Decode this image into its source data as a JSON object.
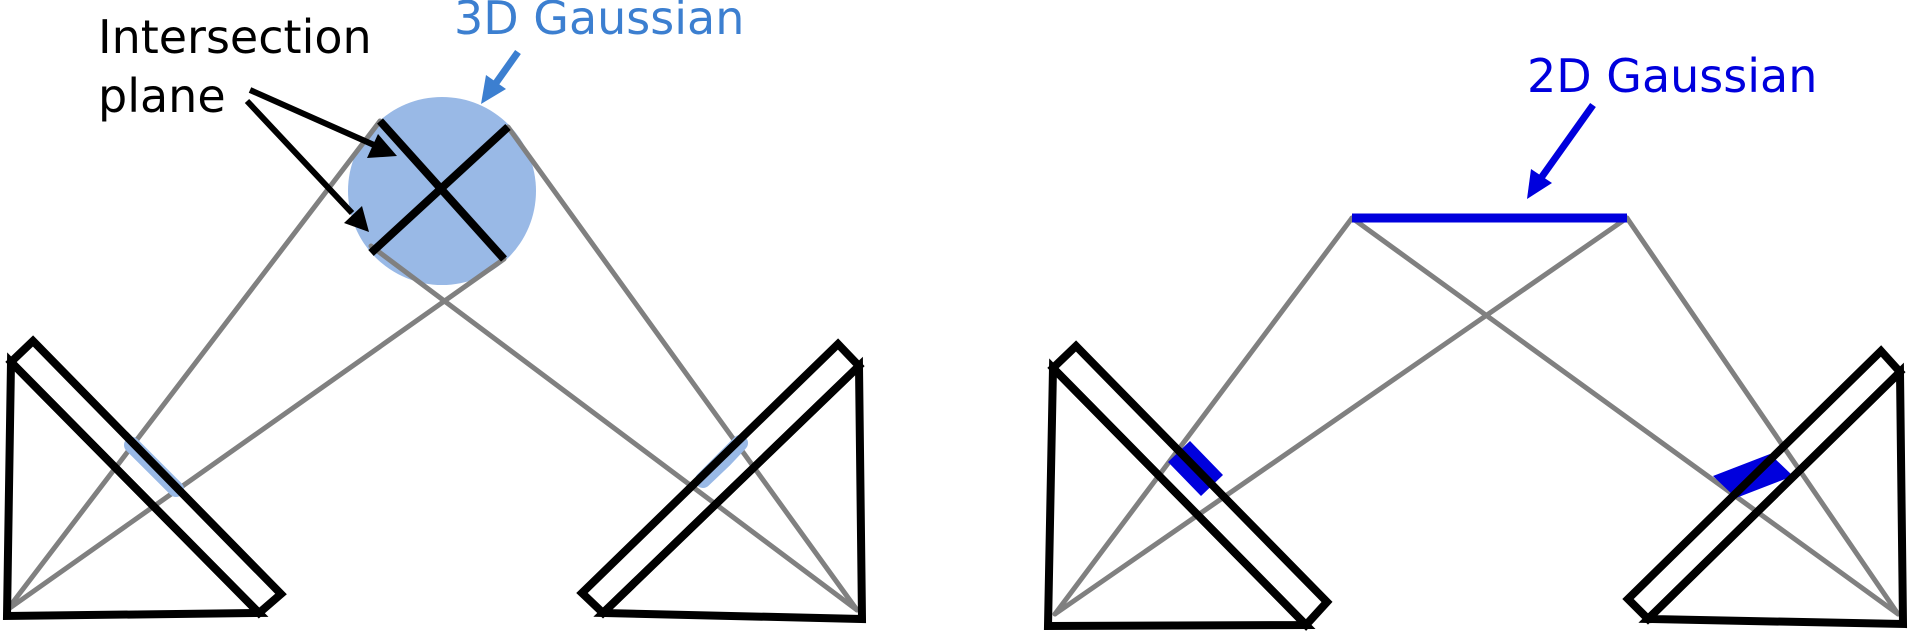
{
  "labels": {
    "intersection_line1": "Intersection",
    "intersection_line2": "plane",
    "gaussian_3d": "3D Gaussian",
    "gaussian_2d": "2D Gaussian"
  },
  "colors": {
    "ray": "#808080",
    "outline": "#000000",
    "gaussian_3d_fill": "#99b9e6",
    "gaussian_3d_text": "#3c7fd0",
    "gaussian_2d": "#0000dd"
  }
}
